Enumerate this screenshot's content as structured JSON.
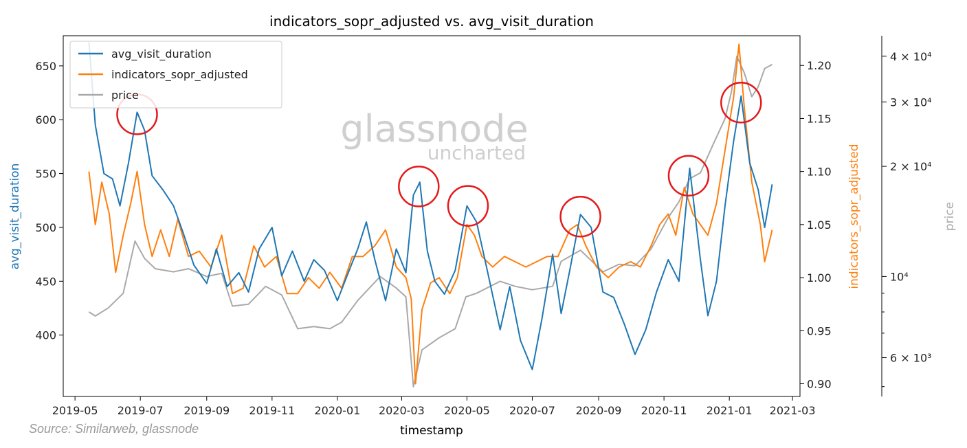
{
  "chart_data": {
    "type": "line",
    "title": "indicators_sopr_adjusted vs. avg_visit_duration",
    "xlabel": "timestamp",
    "x_ticks": [
      "2019-05",
      "2019-07",
      "2019-09",
      "2019-11",
      "2020-01",
      "2020-03",
      "2020-05",
      "2020-07",
      "2020-09",
      "2020-11",
      "2021-01",
      "2021-03"
    ],
    "x_range": [
      "2019-04-20",
      "2021-03-08"
    ],
    "axes": {
      "left": {
        "label": "avg_visit_duration",
        "color": "#1f77b4",
        "range": [
          343,
          678
        ],
        "ticks": [
          400,
          450,
          500,
          550,
          600,
          650
        ]
      },
      "right": {
        "label": "indicators_sopr_adjusted",
        "color": "#ff7f0e",
        "range": [
          0.888,
          1.228
        ],
        "ticks": [
          "0.90",
          "0.95",
          "1.00",
          "1.05",
          "1.10",
          "1.15",
          "1.20"
        ]
      },
      "far_right": {
        "label": "price",
        "color": "#a9a9a9",
        "scale": "log",
        "range": [
          4700,
          45500
        ],
        "ticks": [
          {
            "value": 6000,
            "label": "6 × 10³"
          },
          {
            "value": 10000,
            "label": "10⁴"
          },
          {
            "value": 20000,
            "label": "2 × 10⁴"
          },
          {
            "value": 30000,
            "label": "3 × 10⁴"
          },
          {
            "value": 40000,
            "label": "4 × 10⁴"
          }
        ],
        "minor_ticks": [
          5000,
          7000,
          8000,
          9000
        ]
      }
    },
    "series": [
      {
        "name": "avg_visit_duration",
        "axis": "left",
        "color": "#1f77b4",
        "points": [
          [
            "2019-05-14",
            672
          ],
          [
            "2019-05-20",
            595
          ],
          [
            "2019-05-28",
            550
          ],
          [
            "2019-06-05",
            545
          ],
          [
            "2019-06-12",
            520
          ],
          [
            "2019-06-20",
            560
          ],
          [
            "2019-06-28",
            607
          ],
          [
            "2019-07-05",
            590
          ],
          [
            "2019-07-12",
            548
          ],
          [
            "2019-07-22",
            535
          ],
          [
            "2019-08-01",
            520
          ],
          [
            "2019-08-10",
            495
          ],
          [
            "2019-08-20",
            465
          ],
          [
            "2019-09-01",
            448
          ],
          [
            "2019-09-10",
            480
          ],
          [
            "2019-09-20",
            445
          ],
          [
            "2019-10-01",
            458
          ],
          [
            "2019-10-10",
            440
          ],
          [
            "2019-10-20",
            480
          ],
          [
            "2019-11-01",
            500
          ],
          [
            "2019-11-10",
            455
          ],
          [
            "2019-11-20",
            478
          ],
          [
            "2019-12-01",
            450
          ],
          [
            "2019-12-10",
            470
          ],
          [
            "2019-12-20",
            460
          ],
          [
            "2020-01-01",
            432
          ],
          [
            "2020-01-10",
            455
          ],
          [
            "2020-01-20",
            480
          ],
          [
            "2020-01-28",
            505
          ],
          [
            "2020-02-05",
            470
          ],
          [
            "2020-02-15",
            432
          ],
          [
            "2020-02-25",
            480
          ],
          [
            "2020-03-05",
            458
          ],
          [
            "2020-03-12",
            530
          ],
          [
            "2020-03-18",
            542
          ],
          [
            "2020-03-25",
            478
          ],
          [
            "2020-04-01",
            450
          ],
          [
            "2020-04-10",
            438
          ],
          [
            "2020-04-20",
            460
          ],
          [
            "2020-05-01",
            520
          ],
          [
            "2020-05-10",
            505
          ],
          [
            "2020-05-20",
            460
          ],
          [
            "2020-06-01",
            405
          ],
          [
            "2020-06-10",
            445
          ],
          [
            "2020-06-20",
            395
          ],
          [
            "2020-07-01",
            368
          ],
          [
            "2020-07-10",
            415
          ],
          [
            "2020-07-20",
            475
          ],
          [
            "2020-07-28",
            420
          ],
          [
            "2020-08-05",
            460
          ],
          [
            "2020-08-15",
            512
          ],
          [
            "2020-08-25",
            500
          ],
          [
            "2020-09-05",
            440
          ],
          [
            "2020-09-15",
            435
          ],
          [
            "2020-09-25",
            410
          ],
          [
            "2020-10-05",
            382
          ],
          [
            "2020-10-15",
            405
          ],
          [
            "2020-10-25",
            440
          ],
          [
            "2020-11-05",
            470
          ],
          [
            "2020-11-15",
            450
          ],
          [
            "2020-11-25",
            555
          ],
          [
            "2020-12-05",
            470
          ],
          [
            "2020-12-12",
            418
          ],
          [
            "2020-12-20",
            450
          ],
          [
            "2020-12-28",
            520
          ],
          [
            "2021-01-05",
            580
          ],
          [
            "2021-01-12",
            622
          ],
          [
            "2021-01-20",
            560
          ],
          [
            "2021-01-28",
            535
          ],
          [
            "2021-02-03",
            500
          ],
          [
            "2021-02-10",
            540
          ]
        ]
      },
      {
        "name": "indicators_sopr_adjusted",
        "axis": "right",
        "color": "#ff7f0e",
        "points": [
          [
            "2019-05-14",
            1.1
          ],
          [
            "2019-05-20",
            1.05
          ],
          [
            "2019-05-26",
            1.09
          ],
          [
            "2019-06-02",
            1.06
          ],
          [
            "2019-06-08",
            1.005
          ],
          [
            "2019-06-15",
            1.04
          ],
          [
            "2019-06-22",
            1.07
          ],
          [
            "2019-06-28",
            1.1
          ],
          [
            "2019-07-05",
            1.05
          ],
          [
            "2019-07-12",
            1.02
          ],
          [
            "2019-07-20",
            1.045
          ],
          [
            "2019-07-28",
            1.02
          ],
          [
            "2019-08-05",
            1.055
          ],
          [
            "2019-08-15",
            1.02
          ],
          [
            "2019-08-25",
            1.025
          ],
          [
            "2019-09-05",
            1.01
          ],
          [
            "2019-09-15",
            1.04
          ],
          [
            "2019-09-25",
            0.985
          ],
          [
            "2019-10-05",
            0.99
          ],
          [
            "2019-10-15",
            1.03
          ],
          [
            "2019-10-25",
            1.01
          ],
          [
            "2019-11-05",
            1.02
          ],
          [
            "2019-11-15",
            0.985
          ],
          [
            "2019-11-25",
            0.985
          ],
          [
            "2019-12-05",
            1.0
          ],
          [
            "2019-12-15",
            0.99
          ],
          [
            "2019-12-25",
            1.005
          ],
          [
            "2020-01-05",
            0.99
          ],
          [
            "2020-01-15",
            1.02
          ],
          [
            "2020-01-25",
            1.02
          ],
          [
            "2020-02-05",
            1.03
          ],
          [
            "2020-02-15",
            1.045
          ],
          [
            "2020-02-25",
            1.01
          ],
          [
            "2020-03-05",
            1.0
          ],
          [
            "2020-03-10",
            0.98
          ],
          [
            "2020-03-14",
            0.9
          ],
          [
            "2020-03-20",
            0.97
          ],
          [
            "2020-03-28",
            0.995
          ],
          [
            "2020-04-05",
            1.0
          ],
          [
            "2020-04-15",
            0.985
          ],
          [
            "2020-04-22",
            1.0
          ],
          [
            "2020-05-01",
            1.05
          ],
          [
            "2020-05-08",
            1.04
          ],
          [
            "2020-05-15",
            1.02
          ],
          [
            "2020-05-25",
            1.01
          ],
          [
            "2020-06-05",
            1.02
          ],
          [
            "2020-06-15",
            1.015
          ],
          [
            "2020-06-25",
            1.01
          ],
          [
            "2020-07-05",
            1.015
          ],
          [
            "2020-07-15",
            1.02
          ],
          [
            "2020-07-25",
            1.02
          ],
          [
            "2020-08-05",
            1.045
          ],
          [
            "2020-08-12",
            1.05
          ],
          [
            "2020-08-20",
            1.03
          ],
          [
            "2020-08-30",
            1.01
          ],
          [
            "2020-09-10",
            1.0
          ],
          [
            "2020-09-20",
            1.01
          ],
          [
            "2020-10-01",
            1.015
          ],
          [
            "2020-10-10",
            1.01
          ],
          [
            "2020-10-20",
            1.03
          ],
          [
            "2020-10-28",
            1.05
          ],
          [
            "2020-11-05",
            1.06
          ],
          [
            "2020-11-12",
            1.04
          ],
          [
            "2020-11-20",
            1.085
          ],
          [
            "2020-11-28",
            1.06
          ],
          [
            "2020-12-05",
            1.05
          ],
          [
            "2020-12-12",
            1.04
          ],
          [
            "2020-12-20",
            1.07
          ],
          [
            "2020-12-28",
            1.12
          ],
          [
            "2021-01-05",
            1.17
          ],
          [
            "2021-01-10",
            1.22
          ],
          [
            "2021-01-15",
            1.16
          ],
          [
            "2021-01-22",
            1.09
          ],
          [
            "2021-01-30",
            1.05
          ],
          [
            "2021-02-03",
            1.015
          ],
          [
            "2021-02-10",
            1.045
          ]
        ]
      },
      {
        "name": "price",
        "axis": "far_right",
        "color": "#a9a9a9",
        "points": [
          [
            "2019-05-14",
            8000
          ],
          [
            "2019-05-20",
            7800
          ],
          [
            "2019-06-01",
            8200
          ],
          [
            "2019-06-15",
            9000
          ],
          [
            "2019-06-26",
            12500
          ],
          [
            "2019-07-05",
            11200
          ],
          [
            "2019-07-15",
            10500
          ],
          [
            "2019-08-01",
            10300
          ],
          [
            "2019-08-15",
            10500
          ],
          [
            "2019-09-01",
            10000
          ],
          [
            "2019-09-15",
            10200
          ],
          [
            "2019-09-25",
            8300
          ],
          [
            "2019-10-10",
            8400
          ],
          [
            "2019-10-26",
            9400
          ],
          [
            "2019-11-10",
            8900
          ],
          [
            "2019-11-25",
            7200
          ],
          [
            "2019-12-10",
            7300
          ],
          [
            "2019-12-25",
            7200
          ],
          [
            "2020-01-05",
            7500
          ],
          [
            "2020-01-20",
            8600
          ],
          [
            "2020-02-10",
            10000
          ],
          [
            "2020-02-25",
            9300
          ],
          [
            "2020-03-05",
            8800
          ],
          [
            "2020-03-12",
            5000
          ],
          [
            "2020-03-20",
            6300
          ],
          [
            "2020-04-05",
            6800
          ],
          [
            "2020-04-20",
            7200
          ],
          [
            "2020-04-30",
            8800
          ],
          [
            "2020-05-10",
            9000
          ],
          [
            "2020-06-01",
            9700
          ],
          [
            "2020-06-15",
            9400
          ],
          [
            "2020-07-01",
            9200
          ],
          [
            "2020-07-20",
            9400
          ],
          [
            "2020-07-28",
            11000
          ],
          [
            "2020-08-15",
            11800
          ],
          [
            "2020-09-05",
            10300
          ],
          [
            "2020-09-20",
            10800
          ],
          [
            "2020-10-05",
            10700
          ],
          [
            "2020-10-20",
            11900
          ],
          [
            "2020-11-05",
            14500
          ],
          [
            "2020-11-15",
            16000
          ],
          [
            "2020-11-25",
            18500
          ],
          [
            "2020-12-05",
            19200
          ],
          [
            "2020-12-17",
            23000
          ],
          [
            "2020-12-28",
            27000
          ],
          [
            "2021-01-03",
            32000
          ],
          [
            "2021-01-08",
            40000
          ],
          [
            "2021-01-15",
            36000
          ],
          [
            "2021-01-22",
            31000
          ],
          [
            "2021-01-28",
            33000
          ],
          [
            "2021-02-03",
            37000
          ],
          [
            "2021-02-10",
            38000
          ]
        ]
      }
    ],
    "legend": [
      "avg_visit_duration",
      "indicators_sopr_adjusted",
      "price"
    ],
    "legend_position": "top-left",
    "annotations": {
      "circles": [
        {
          "date": "2019-06-28",
          "value": 605
        },
        {
          "date": "2020-03-17",
          "value": 538
        },
        {
          "date": "2020-05-02",
          "value": 520
        },
        {
          "date": "2020-08-15",
          "value": 510
        },
        {
          "date": "2020-11-24",
          "value": 548
        },
        {
          "date": "2021-01-12",
          "value": 1.165,
          "axis": "right"
        }
      ],
      "circle_color": "#e31a1c"
    }
  },
  "watermark": {
    "brand": "glassnode",
    "tagline": "uncharted"
  },
  "source": "Source: Similarweb, glassnode"
}
